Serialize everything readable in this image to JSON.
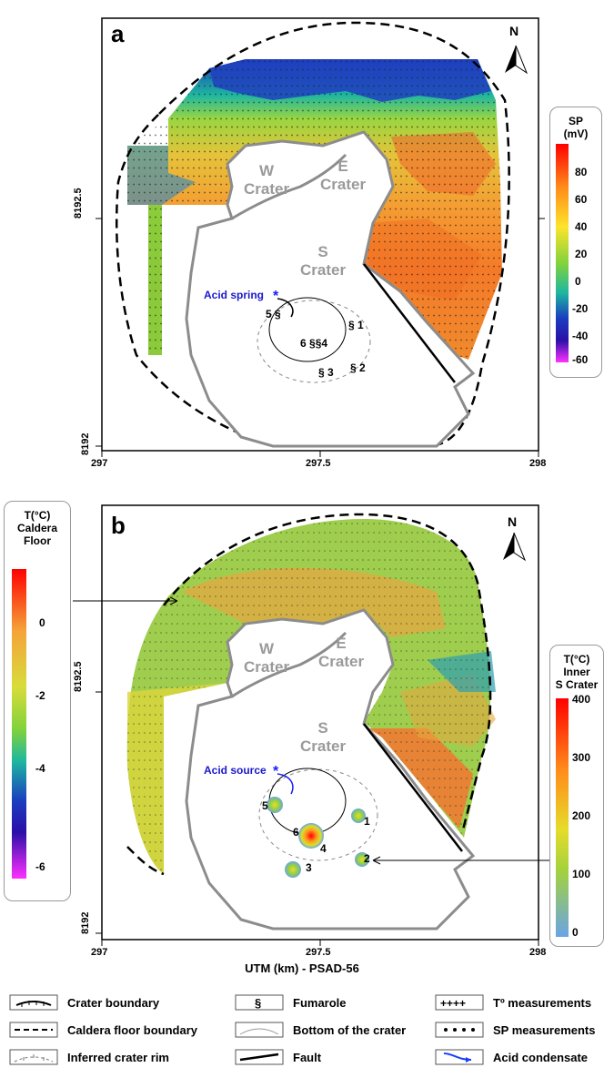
{
  "panel_a": {
    "letter": "a",
    "north": "N",
    "y_ticks": [
      "8192.5",
      "8192"
    ],
    "x_ticks": [
      "297",
      "297.5",
      "298"
    ],
    "crater_labels": {
      "w1": "W",
      "w2": "Crater",
      "e1": "E",
      "e2": "Crater",
      "s1": "S",
      "s2": "Crater"
    },
    "spring_label": "Acid spring",
    "fumaroles": [
      "1",
      "2",
      "3",
      "4",
      "5",
      "6"
    ],
    "colorbar": {
      "title1": "SP",
      "title2": "(mV)",
      "ticks": [
        "80",
        "60",
        "40",
        "20",
        "0",
        "-20",
        "-40",
        "-60"
      ],
      "colors": [
        "#ff0000",
        "#ff8c1a",
        "#fde42b",
        "#7fd23c",
        "#1eb7a0",
        "#1a3dbf",
        "#2a0fa8",
        "#ff30ff"
      ]
    }
  },
  "panel_b": {
    "letter": "b",
    "north": "N",
    "y_ticks": [
      "8192.5",
      "8192"
    ],
    "x_ticks": [
      "297",
      "297.5",
      "298"
    ],
    "crater_labels": {
      "w1": "W",
      "w2": "Crater",
      "e1": "E",
      "e2": "Crater",
      "s1": "S",
      "s2": "Crater"
    },
    "source_label": "Acid source",
    "fumaroles": [
      "1",
      "2",
      "3",
      "4",
      "5",
      "6"
    ],
    "x_axis_title": "UTM (km) - PSAD-56",
    "colorbar_floor": {
      "title1": "T(°C)",
      "title2": "Caldera",
      "title3": "Floor",
      "ticks": [
        "0",
        "-2",
        "-4",
        "-6"
      ]
    },
    "colorbar_inner": {
      "title1": "T(°C)",
      "title2": "Inner",
      "title3": "S Crater",
      "ticks": [
        "400",
        "300",
        "200",
        "100",
        "0"
      ]
    }
  },
  "legend": {
    "crater_boundary": "Crater boundary",
    "caldera_floor_boundary": "Caldera floor boundary",
    "inferred_crater_rim": "Inferred crater rim",
    "fumarole": "Fumarole",
    "bottom_of_crater": "Bottom of the crater",
    "fault": "Fault",
    "t_measurements": "Tº measurements",
    "sp_measurements": "SP measurements",
    "acid_condensate": "Acid condensate"
  }
}
